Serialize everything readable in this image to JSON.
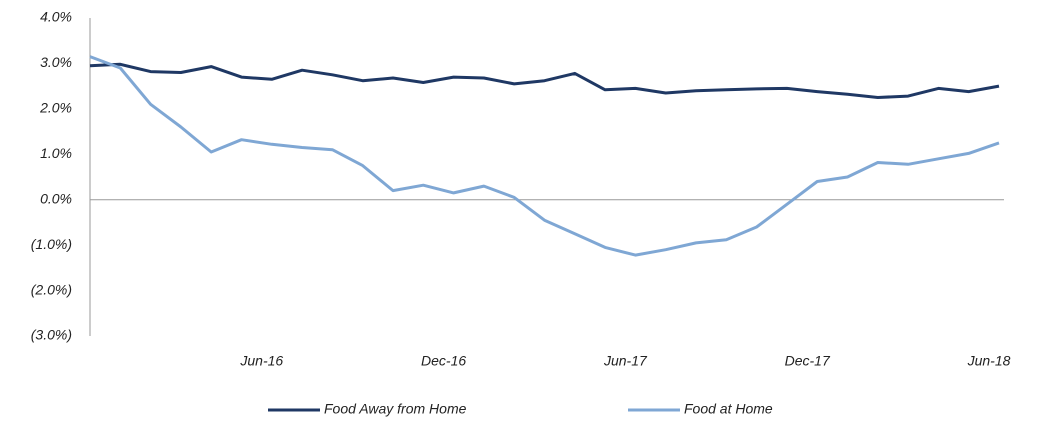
{
  "chart_data": {
    "type": "line",
    "categories": [
      null,
      null,
      null,
      null,
      null,
      null,
      "Jun-16",
      null,
      null,
      null,
      null,
      null,
      "Dec-16",
      null,
      null,
      null,
      null,
      null,
      "Jun-17",
      null,
      null,
      null,
      null,
      null,
      "Dec-17",
      null,
      null,
      null,
      null,
      null,
      "Jun-18"
    ],
    "series": [
      {
        "name": "Food Away from Home",
        "color": "#1f3864",
        "values": [
          2.95,
          2.98,
          2.82,
          2.8,
          2.93,
          2.7,
          2.65,
          2.85,
          2.75,
          2.62,
          2.68,
          2.58,
          2.7,
          2.68,
          2.55,
          2.62,
          2.78,
          2.42,
          2.45,
          2.35,
          2.4,
          2.42,
          2.44,
          2.45,
          2.38,
          2.32,
          2.25,
          2.28,
          2.45,
          2.38,
          2.5
        ]
      },
      {
        "name": "Food at Home",
        "color": "#7fa7d4",
        "values": [
          3.15,
          2.9,
          2.1,
          1.6,
          1.05,
          1.32,
          1.22,
          1.15,
          1.1,
          0.75,
          0.2,
          0.32,
          0.15,
          0.3,
          0.05,
          -0.45,
          -0.75,
          -1.05,
          -1.22,
          -1.1,
          -0.95,
          -0.88,
          -0.6,
          -0.1,
          0.4,
          0.5,
          0.82,
          0.78,
          0.9,
          1.02,
          1.25
        ]
      }
    ],
    "ylim": [
      -3,
      4
    ],
    "yticks": [
      {
        "value": 4,
        "label": "4.0%"
      },
      {
        "value": 3,
        "label": "3.0%"
      },
      {
        "value": 2,
        "label": "2.0%"
      },
      {
        "value": 1,
        "label": "1.0%"
      },
      {
        "value": 0,
        "label": "0.0%"
      },
      {
        "value": -1,
        "label": "(1.0%)"
      },
      {
        "value": -2,
        "label": "(2.0%)"
      },
      {
        "value": -3,
        "label": "(3.0%)"
      }
    ],
    "legend": "bottom"
  }
}
